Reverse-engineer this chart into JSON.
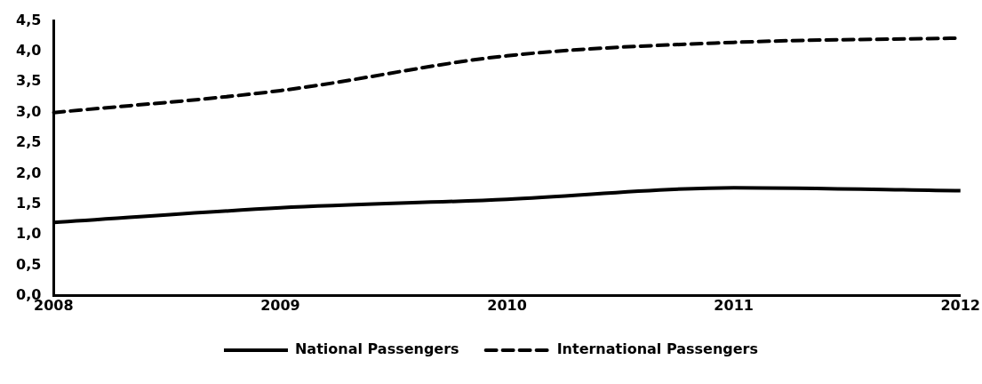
{
  "chart_data": {
    "type": "line",
    "categories": [
      "2008",
      "2009",
      "2010",
      "2011",
      "2012"
    ],
    "series": [
      {
        "name": "National Passengers",
        "color": "#000000",
        "line_style": "solid",
        "values": [
          1.2,
          1.44,
          1.58,
          1.77,
          1.72
        ]
      },
      {
        "name": "International Passengers",
        "color": "#000000",
        "line_style": "dashed",
        "values": [
          3.0,
          3.36,
          3.93,
          4.15,
          4.22
        ]
      }
    ],
    "ylim": [
      0,
      4.5
    ],
    "yticks": [
      {
        "value": 0,
        "label": "0,0"
      },
      {
        "value": 0.5,
        "label": "0,5"
      },
      {
        "value": 1,
        "label": "1,0"
      },
      {
        "value": 1.5,
        "label": "1,5"
      },
      {
        "value": 2,
        "label": "2,0"
      },
      {
        "value": 2.5,
        "label": "2,5"
      },
      {
        "value": 3,
        "label": "3,0"
      },
      {
        "value": 3.5,
        "label": "3,5"
      },
      {
        "value": 4,
        "label": "4,0"
      },
      {
        "value": 4.5,
        "label": "4,5"
      }
    ],
    "grid": false,
    "legend": "bottom",
    "marker": "none"
  }
}
